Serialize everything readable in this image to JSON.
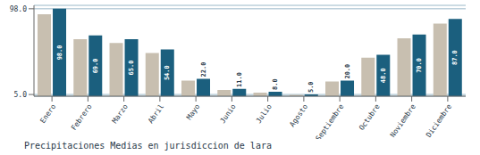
{
  "chart_data": {
    "type": "bar",
    "title": "Precipitaciones Medias en jurisdiccion de lara",
    "categories": [
      "Enero",
      "Febrero",
      "Marzo",
      "Abril",
      "Mayo",
      "Junio",
      "Julio",
      "Agosto",
      "Septiembre",
      "Octubre",
      "Noviembre",
      "Diciembre"
    ],
    "series": [
      {
        "color": "#c8bfb0",
        "values": [
          92.0,
          65.0,
          61.0,
          50.0,
          20.0,
          10.0,
          7.0,
          4.5,
          19.0,
          45.0,
          66.0,
          82.0
        ]
      },
      {
        "color": "#1b5f7e",
        "values": [
          98.0,
          69.0,
          65.0,
          54.0,
          22.0,
          11.0,
          8.0,
          5.0,
          20.0,
          48.0,
          70.0,
          87.0
        ],
        "data_labels": true,
        "value_labels": [
          "98.0",
          "69.0",
          "65.0",
          "54.0",
          "22.0",
          "11.0",
          "8.0",
          "5.0",
          "20.0",
          "48.0",
          "70.0",
          "87.0"
        ]
      }
    ],
    "ylim": [
      3.14,
      101.72
    ],
    "yticks": [
      {
        "value": 5.0,
        "label": "5.0"
      },
      {
        "value": 98.0,
        "label": "98.0"
      }
    ],
    "grid": true
  }
}
